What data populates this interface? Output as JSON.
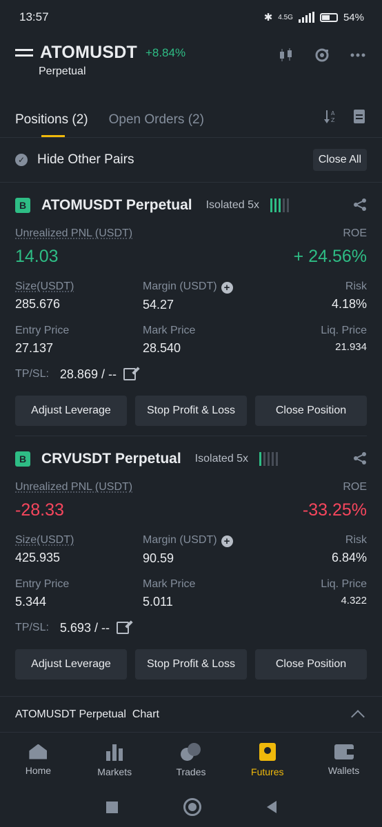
{
  "status": {
    "time": "13:57",
    "network": "4.5G",
    "battery": "54%"
  },
  "header": {
    "symbol": "ATOMUSDT",
    "change": "+8.84%",
    "subtitle": "Perpetual"
  },
  "tabs": [
    {
      "label": "Positions (2)"
    },
    {
      "label": "Open Orders (2)"
    }
  ],
  "filter": {
    "hide_label": "Hide Other Pairs",
    "close_all": "Close All"
  },
  "labels": {
    "unrealized": "Unrealized PNL (USDT)",
    "roe": "ROE",
    "size": "Size(USDT)",
    "margin": "Margin (USDT)",
    "risk": "Risk",
    "entry": "Entry Price",
    "mark": "Mark Price",
    "liq": "Liq. Price",
    "tpsl": "TP/SL:",
    "adjust": "Adjust Leverage",
    "stop": "Stop Profit & Loss",
    "close": "Close Position"
  },
  "positions": [
    {
      "badge": "B",
      "title": "ATOMUSDT Perpetual",
      "tag": "Isolated 5x",
      "pnl": "14.03",
      "roe": "+ 24.56%",
      "size": "285.676",
      "margin": "54.27",
      "risk": "4.18%",
      "entry": "27.137",
      "mark": "28.540",
      "liq": "21.934",
      "tpsl": "28.869 / --",
      "risk_level": 0.6,
      "pnl_color": "#2ebd85"
    },
    {
      "badge": "B",
      "title": "CRVUSDT Perpetual",
      "tag": "Isolated 5x",
      "pnl": "-28.33",
      "roe": "-33.25%",
      "size": "425.935",
      "margin": "90.59",
      "risk": "6.84%",
      "entry": "5.344",
      "mark": "5.011",
      "liq": "4.322",
      "tpsl": "5.693 / --",
      "risk_level": 0.2,
      "pnl_color": "#f6465d"
    }
  ],
  "chart_bar": {
    "label": "ATOMUSDT Perpetual  Chart"
  },
  "nav": [
    {
      "label": "Home"
    },
    {
      "label": "Markets"
    },
    {
      "label": "Trades"
    },
    {
      "label": "Futures"
    },
    {
      "label": "Wallets"
    }
  ],
  "colors": {
    "accent": "#f0b90b",
    "positive": "#2ebd85",
    "negative": "#f6465d",
    "background": "#1e2329"
  }
}
